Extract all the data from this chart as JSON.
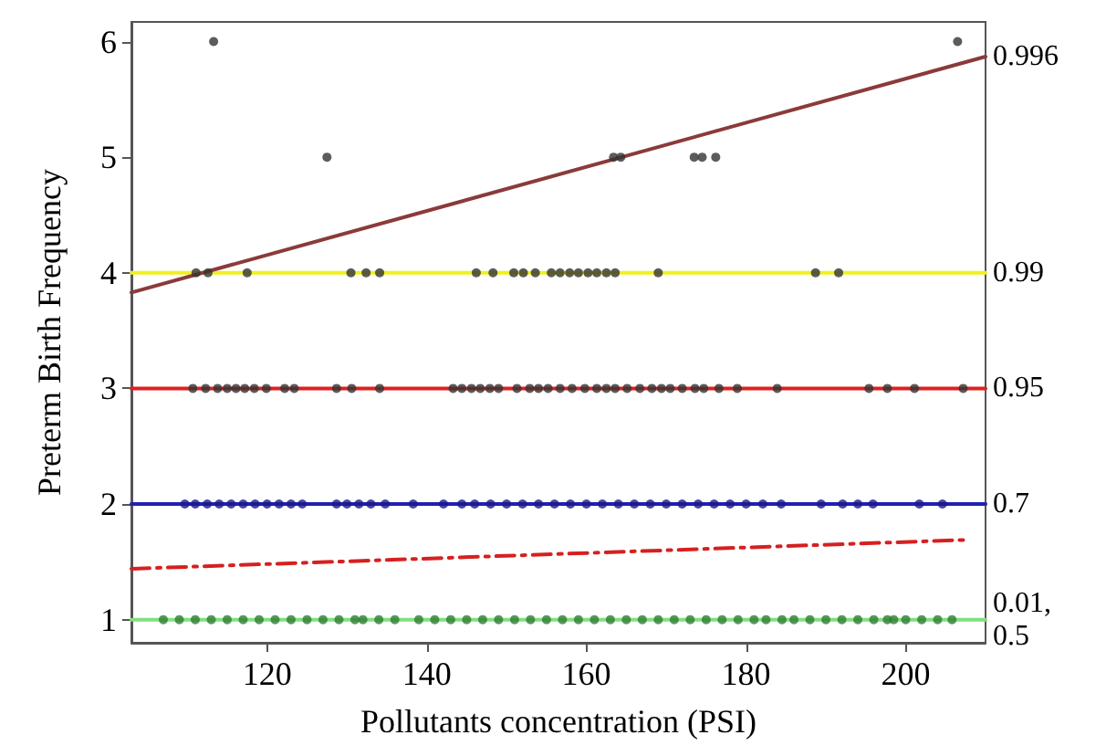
{
  "chart_data": {
    "type": "scatter",
    "xlabel": "Pollutants concentration (PSI)",
    "ylabel": "Preterm Birth Frequency",
    "xlim": [
      103,
      210
    ],
    "ylim": [
      0.8,
      6.17
    ],
    "xticks": [
      120,
      140,
      160,
      180,
      200
    ],
    "yticks": [
      1,
      2,
      3,
      4,
      5,
      6
    ],
    "grid": false,
    "marker": "circle",
    "series": [
      {
        "color": "#333333",
        "x": [
          113.3,
          206.5
        ],
        "values": [
          6,
          6
        ]
      },
      {
        "color": "#333333",
        "x": [
          127.5,
          163.4,
          164.3,
          173.5,
          174.5,
          176.2
        ],
        "values": [
          5,
          5,
          5,
          5,
          5,
          5
        ]
      },
      {
        "color": "#333333",
        "x": [
          111.1,
          112.6,
          117.5,
          130.5,
          132.4,
          134.1,
          146.2,
          148.3,
          150.9,
          152.1,
          153.6,
          155.6,
          156.7,
          157.9,
          159.0,
          160.2,
          161.3,
          162.5,
          163.6,
          169.0,
          188.7,
          191.6
        ],
        "values": [
          4,
          4,
          4,
          4,
          4,
          4,
          4,
          4,
          4,
          4,
          4,
          4,
          4,
          4,
          4,
          4,
          4,
          4,
          4,
          4,
          4,
          4
        ]
      },
      {
        "color": "#333333",
        "x": [
          110.7,
          112.3,
          113.8,
          115.0,
          116.1,
          117.2,
          118.4,
          119.9,
          122.2,
          123.4,
          128.7,
          130.6,
          134.1,
          143.3,
          144.4,
          145.6,
          146.7,
          147.9,
          149.0,
          151.3,
          152.9,
          154.0,
          155.2,
          156.7,
          158.2,
          159.8,
          161.3,
          162.5,
          163.6,
          165.1,
          166.7,
          168.2,
          169.4,
          170.5,
          172.0,
          173.6,
          174.7,
          176.6,
          178.9,
          183.9,
          195.4,
          197.7,
          201.1,
          207.2
        ],
        "values": [
          3,
          3,
          3,
          3,
          3,
          3,
          3,
          3,
          3,
          3,
          3,
          3,
          3,
          3,
          3,
          3,
          3,
          3,
          3,
          3,
          3,
          3,
          3,
          3,
          3,
          3,
          3,
          3,
          3,
          3,
          3,
          3,
          3,
          3,
          3,
          3,
          3,
          3,
          3,
          3,
          3,
          3,
          3,
          3
        ]
      },
      {
        "color": "#1a1a8c",
        "x": [
          109.7,
          111,
          112.5,
          114,
          115.5,
          117,
          118.5,
          120,
          121.5,
          123,
          124.4,
          128.7,
          130,
          131.5,
          133,
          134.8,
          138.3,
          142.1,
          144.4,
          146,
          148,
          150,
          152,
          154,
          156,
          158,
          160,
          162,
          164,
          166,
          168,
          170,
          172,
          174,
          176,
          178,
          180,
          182.1,
          184.4,
          189.4,
          192.1,
          194,
          195.9,
          201.7,
          204.6
        ],
        "values": [
          2,
          2,
          2,
          2,
          2,
          2,
          2,
          2,
          2,
          2,
          2,
          2,
          2,
          2,
          2,
          2,
          2,
          2,
          2,
          2,
          2,
          2,
          2,
          2,
          2,
          2,
          2,
          2,
          2,
          2,
          2,
          2,
          2,
          2,
          2,
          2,
          2,
          2,
          2,
          2,
          2,
          2,
          2,
          2,
          2
        ]
      },
      {
        "color": "#2e7d32",
        "x": [
          107,
          109,
          111,
          113,
          115,
          117,
          119,
          121,
          123,
          125,
          127,
          129,
          131,
          132,
          134,
          136,
          139,
          141,
          143,
          145,
          147,
          149,
          151,
          153,
          155,
          157,
          159,
          161,
          163,
          165,
          167,
          169,
          171,
          173,
          175,
          177,
          179,
          181,
          182.5,
          184.5,
          186,
          188,
          190,
          192,
          194,
          196,
          197.7,
          198.5,
          200,
          202,
          204,
          205.8
        ],
        "values": [
          1,
          1,
          1,
          1,
          1,
          1,
          1,
          1,
          1,
          1,
          1,
          1,
          1,
          1,
          1,
          1,
          1,
          1,
          1,
          1,
          1,
          1,
          1,
          1,
          1,
          1,
          1,
          1,
          1,
          1,
          1,
          1,
          1,
          1,
          1,
          1,
          1,
          1,
          1,
          1,
          1,
          1,
          1,
          1,
          1,
          1,
          1,
          1,
          1,
          1,
          1,
          1
        ]
      },
      {
        "type": "line",
        "name": "0.99",
        "color": "#f0f020",
        "marker": "none",
        "line_style": "solid",
        "x": [
          103,
          210
        ],
        "values": [
          4,
          4
        ]
      },
      {
        "type": "line",
        "name": "0.95",
        "color": "#e02020",
        "marker": "none",
        "line_style": "solid",
        "x": [
          103,
          210
        ],
        "values": [
          3,
          3
        ]
      },
      {
        "type": "line",
        "name": "0.7",
        "color": "#2020b0",
        "marker": "none",
        "line_style": "solid",
        "x": [
          103,
          210
        ],
        "values": [
          2,
          2
        ]
      },
      {
        "type": "line",
        "name": "0.01, 0.5",
        "color": "#80e080",
        "marker": "none",
        "line_style": "solid",
        "x": [
          103,
          210
        ],
        "values": [
          1,
          1
        ]
      },
      {
        "type": "line",
        "name": "0.996",
        "color": "#8b3a3a",
        "marker": "none",
        "line_style": "solid",
        "x": [
          103,
          210
        ],
        "values": [
          3.83,
          5.87
        ]
      },
      {
        "type": "line",
        "color": "#d62020",
        "marker": "none",
        "line_style": "dashed",
        "x": [
          103,
          207.5
        ],
        "values": [
          1.44,
          1.69
        ]
      }
    ]
  }
}
